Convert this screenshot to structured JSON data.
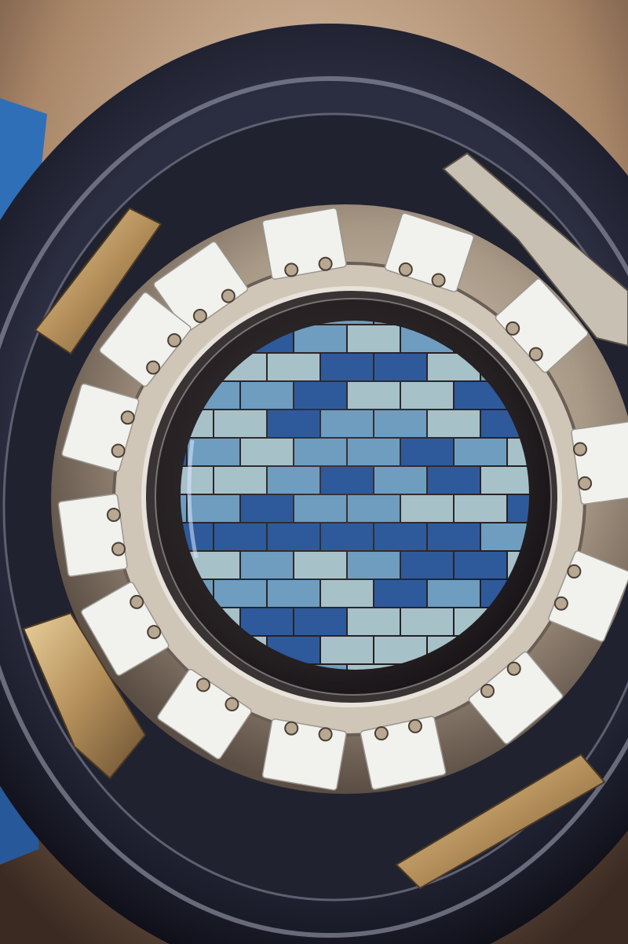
{
  "photo": {
    "subject": "camera-focal-plane",
    "colors": {
      "background_warm": "#c9a887",
      "background_blue": "#2f6fb8",
      "outer_ring": "#1b1d2c",
      "ring_highlight": "#8a8c9c",
      "steel_ring": "#b8aa96",
      "clamp_pad": "#f1f1ee",
      "bracket_brass": "#b48f5a",
      "glass_dark": "#2a2426",
      "ccd_light": "#a7c1c9",
      "ccd_mid": "#6f9dc0",
      "ccd_dark": "#2e5a9c"
    }
  }
}
